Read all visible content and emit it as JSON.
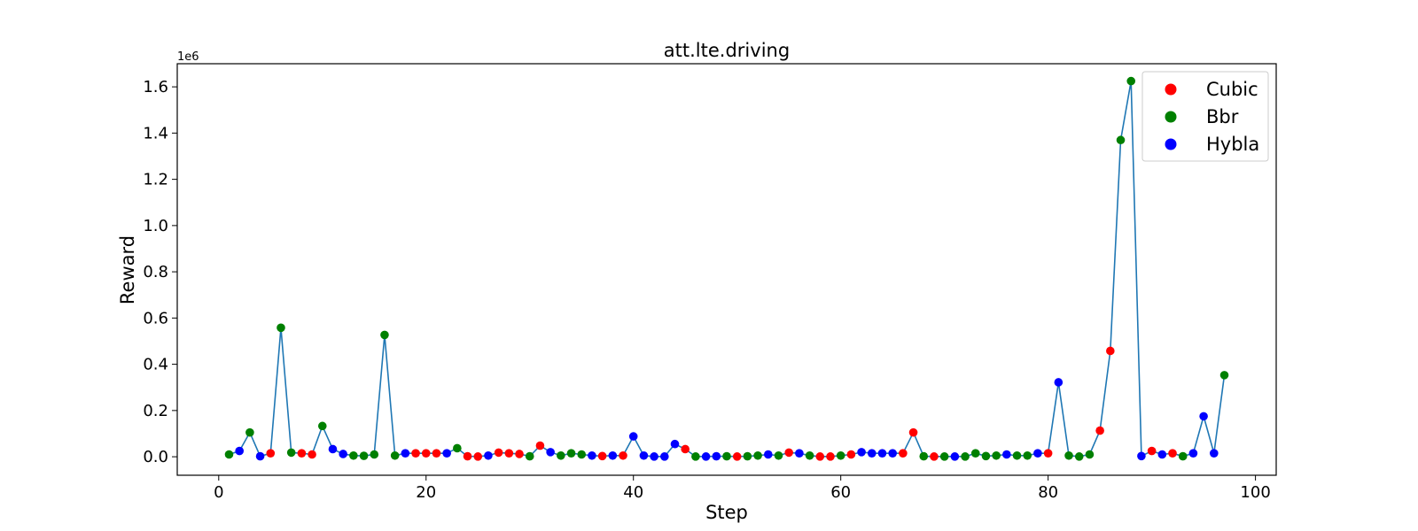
{
  "chart_data": {
    "type": "line",
    "title": "att.lte.driving",
    "xlabel": "Step",
    "ylabel": "Reward",
    "y_offset_label": "1e6",
    "y_multiplier": 1000000,
    "xlim": [
      -4,
      102
    ],
    "ylim": [
      -80000,
      1700000
    ],
    "x_ticks": [
      0,
      20,
      40,
      60,
      80,
      100
    ],
    "x_tick_labels": [
      "0",
      "20",
      "40",
      "60",
      "80",
      "100"
    ],
    "y_ticks": [
      0,
      200000,
      400000,
      600000,
      800000,
      1000000,
      1200000,
      1400000,
      1600000
    ],
    "y_tick_labels": [
      "0.0",
      "0.2",
      "0.4",
      "0.6",
      "0.8",
      "1.0",
      "1.2",
      "1.4",
      "1.6"
    ],
    "grid": false,
    "legend_position": "top-right",
    "line_color": "#1f77b4",
    "categories": [
      {
        "name": "Cubic",
        "color": "#ff0000"
      },
      {
        "name": "Bbr",
        "color": "#008000"
      },
      {
        "name": "Hybla",
        "color": "#0000ff"
      }
    ],
    "points": [
      {
        "x": 1,
        "y": 10000,
        "s": "Bbr"
      },
      {
        "x": 2,
        "y": 25000,
        "s": "Hybla"
      },
      {
        "x": 3,
        "y": 105000,
        "s": "Bbr"
      },
      {
        "x": 4,
        "y": 2000,
        "s": "Hybla"
      },
      {
        "x": 5,
        "y": 15000,
        "s": "Cubic"
      },
      {
        "x": 6,
        "y": 558000,
        "s": "Bbr"
      },
      {
        "x": 7,
        "y": 18000,
        "s": "Bbr"
      },
      {
        "x": 8,
        "y": 15000,
        "s": "Cubic"
      },
      {
        "x": 9,
        "y": 10000,
        "s": "Cubic"
      },
      {
        "x": 10,
        "y": 133000,
        "s": "Bbr"
      },
      {
        "x": 11,
        "y": 33000,
        "s": "Hybla"
      },
      {
        "x": 12,
        "y": 12000,
        "s": "Hybla"
      },
      {
        "x": 13,
        "y": 5000,
        "s": "Bbr"
      },
      {
        "x": 14,
        "y": 4000,
        "s": "Bbr"
      },
      {
        "x": 15,
        "y": 10000,
        "s": "Bbr"
      },
      {
        "x": 16,
        "y": 527000,
        "s": "Bbr"
      },
      {
        "x": 17,
        "y": 5000,
        "s": "Bbr"
      },
      {
        "x": 18,
        "y": 15000,
        "s": "Hybla"
      },
      {
        "x": 19,
        "y": 15000,
        "s": "Cubic"
      },
      {
        "x": 20,
        "y": 15000,
        "s": "Cubic"
      },
      {
        "x": 21,
        "y": 15000,
        "s": "Cubic"
      },
      {
        "x": 22,
        "y": 15000,
        "s": "Hybla"
      },
      {
        "x": 23,
        "y": 37000,
        "s": "Bbr"
      },
      {
        "x": 24,
        "y": 2000,
        "s": "Cubic"
      },
      {
        "x": 25,
        "y": 1000,
        "s": "Cubic"
      },
      {
        "x": 26,
        "y": 5000,
        "s": "Hybla"
      },
      {
        "x": 27,
        "y": 18000,
        "s": "Cubic"
      },
      {
        "x": 28,
        "y": 15000,
        "s": "Cubic"
      },
      {
        "x": 29,
        "y": 12000,
        "s": "Cubic"
      },
      {
        "x": 30,
        "y": 2000,
        "s": "Bbr"
      },
      {
        "x": 31,
        "y": 48000,
        "s": "Cubic"
      },
      {
        "x": 32,
        "y": 20000,
        "s": "Hybla"
      },
      {
        "x": 33,
        "y": 5000,
        "s": "Bbr"
      },
      {
        "x": 34,
        "y": 15000,
        "s": "Bbr"
      },
      {
        "x": 35,
        "y": 10000,
        "s": "Bbr"
      },
      {
        "x": 36,
        "y": 5000,
        "s": "Hybla"
      },
      {
        "x": 37,
        "y": 3000,
        "s": "Cubic"
      },
      {
        "x": 38,
        "y": 5000,
        "s": "Hybla"
      },
      {
        "x": 39,
        "y": 5000,
        "s": "Cubic"
      },
      {
        "x": 40,
        "y": 88000,
        "s": "Hybla"
      },
      {
        "x": 41,
        "y": 5000,
        "s": "Hybla"
      },
      {
        "x": 42,
        "y": 1000,
        "s": "Hybla"
      },
      {
        "x": 43,
        "y": 1000,
        "s": "Hybla"
      },
      {
        "x": 44,
        "y": 55000,
        "s": "Hybla"
      },
      {
        "x": 45,
        "y": 33000,
        "s": "Cubic"
      },
      {
        "x": 46,
        "y": 1000,
        "s": "Bbr"
      },
      {
        "x": 47,
        "y": 1000,
        "s": "Hybla"
      },
      {
        "x": 48,
        "y": 2000,
        "s": "Hybla"
      },
      {
        "x": 49,
        "y": 2000,
        "s": "Bbr"
      },
      {
        "x": 50,
        "y": 1000,
        "s": "Cubic"
      },
      {
        "x": 51,
        "y": 2000,
        "s": "Bbr"
      },
      {
        "x": 52,
        "y": 5000,
        "s": "Bbr"
      },
      {
        "x": 53,
        "y": 10000,
        "s": "Hybla"
      },
      {
        "x": 54,
        "y": 5000,
        "s": "Bbr"
      },
      {
        "x": 55,
        "y": 18000,
        "s": "Cubic"
      },
      {
        "x": 56,
        "y": 15000,
        "s": "Hybla"
      },
      {
        "x": 57,
        "y": 5000,
        "s": "Bbr"
      },
      {
        "x": 58,
        "y": 1000,
        "s": "Cubic"
      },
      {
        "x": 59,
        "y": 1000,
        "s": "Cubic"
      },
      {
        "x": 60,
        "y": 5000,
        "s": "Bbr"
      },
      {
        "x": 61,
        "y": 10000,
        "s": "Cubic"
      },
      {
        "x": 62,
        "y": 20000,
        "s": "Hybla"
      },
      {
        "x": 63,
        "y": 15000,
        "s": "Hybla"
      },
      {
        "x": 64,
        "y": 15000,
        "s": "Hybla"
      },
      {
        "x": 65,
        "y": 15000,
        "s": "Hybla"
      },
      {
        "x": 66,
        "y": 15000,
        "s": "Cubic"
      },
      {
        "x": 67,
        "y": 105000,
        "s": "Cubic"
      },
      {
        "x": 68,
        "y": 2000,
        "s": "Bbr"
      },
      {
        "x": 69,
        "y": 1000,
        "s": "Cubic"
      },
      {
        "x": 70,
        "y": 1000,
        "s": "Bbr"
      },
      {
        "x": 71,
        "y": 1000,
        "s": "Hybla"
      },
      {
        "x": 72,
        "y": 1000,
        "s": "Bbr"
      },
      {
        "x": 73,
        "y": 15000,
        "s": "Bbr"
      },
      {
        "x": 74,
        "y": 3000,
        "s": "Bbr"
      },
      {
        "x": 75,
        "y": 5000,
        "s": "Bbr"
      },
      {
        "x": 76,
        "y": 10000,
        "s": "Hybla"
      },
      {
        "x": 77,
        "y": 5000,
        "s": "Bbr"
      },
      {
        "x": 78,
        "y": 5000,
        "s": "Bbr"
      },
      {
        "x": 79,
        "y": 15000,
        "s": "Hybla"
      },
      {
        "x": 80,
        "y": 15000,
        "s": "Cubic"
      },
      {
        "x": 81,
        "y": 322000,
        "s": "Hybla"
      },
      {
        "x": 82,
        "y": 5000,
        "s": "Bbr"
      },
      {
        "x": 83,
        "y": 1000,
        "s": "Bbr"
      },
      {
        "x": 84,
        "y": 10000,
        "s": "Bbr"
      },
      {
        "x": 85,
        "y": 113000,
        "s": "Cubic"
      },
      {
        "x": 86,
        "y": 458000,
        "s": "Cubic"
      },
      {
        "x": 87,
        "y": 1370000,
        "s": "Bbr"
      },
      {
        "x": 88,
        "y": 1625000,
        "s": "Bbr"
      },
      {
        "x": 89,
        "y": 3000,
        "s": "Hybla"
      },
      {
        "x": 90,
        "y": 25000,
        "s": "Cubic"
      },
      {
        "x": 91,
        "y": 10000,
        "s": "Hybla"
      },
      {
        "x": 92,
        "y": 15000,
        "s": "Cubic"
      },
      {
        "x": 93,
        "y": 2000,
        "s": "Bbr"
      },
      {
        "x": 94,
        "y": 15000,
        "s": "Hybla"
      },
      {
        "x": 95,
        "y": 175000,
        "s": "Hybla"
      },
      {
        "x": 96,
        "y": 15000,
        "s": "Hybla"
      },
      {
        "x": 97,
        "y": 353000,
        "s": "Bbr"
      }
    ]
  }
}
